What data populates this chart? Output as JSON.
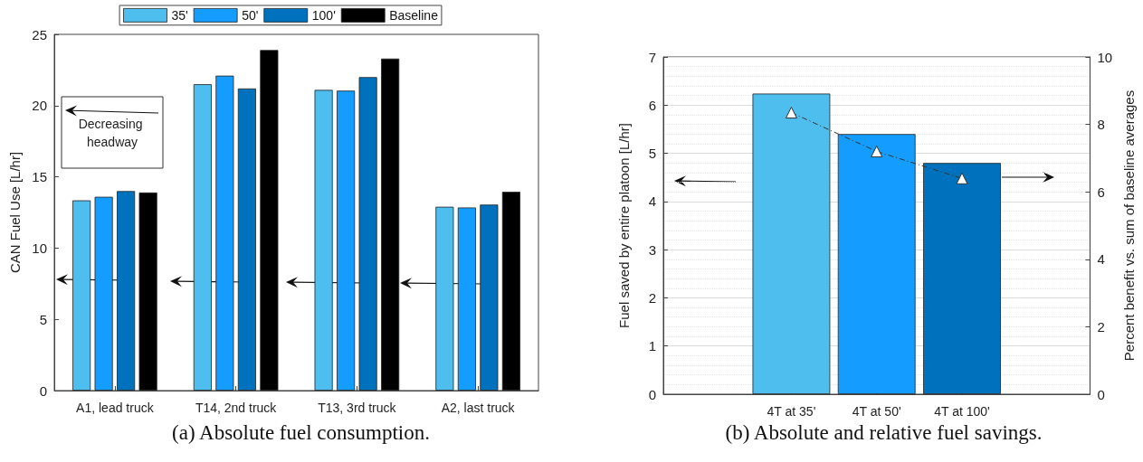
{
  "chart_data": [
    {
      "type": "bar",
      "title": "(a) Absolute fuel consumption.",
      "ylabel": "CAN Fuel Use [L/hr]",
      "categories": [
        "A1, lead truck",
        "T14, 2nd truck",
        "T13, 3rd truck",
        "A2, last truck"
      ],
      "series": [
        {
          "name": "35'",
          "color": "#4dbeee",
          "values": [
            13.35,
            21.5,
            21.1,
            12.9
          ]
        },
        {
          "name": "50'",
          "color": "#149dff",
          "values": [
            13.6,
            22.1,
            21.05,
            12.85
          ]
        },
        {
          "name": "100'",
          "color": "#0072bd",
          "values": [
            14.0,
            21.2,
            22.0,
            13.05
          ]
        },
        {
          "name": "Baseline",
          "color": "#000000",
          "values": [
            13.9,
            23.9,
            23.3,
            13.95
          ]
        }
      ],
      "ylim": [
        0,
        25
      ],
      "yticks": [
        0,
        5,
        10,
        15,
        20,
        25
      ],
      "legend": "top",
      "annotations": [
        "Decreasing headway"
      ]
    },
    {
      "type": "bar",
      "title": "(b) Absolute and relative fuel savings.",
      "ylabel": "Fuel saved by entire platoon [L/hr]",
      "y2label": "Percent benefit vs. sum of baseline averages",
      "categories": [
        null,
        "4T at 35'",
        "4T at 50'",
        "4T at 100'",
        null
      ],
      "series": [
        {
          "colors": [
            "#4dbeee",
            "#4dbeee",
            "#149dff",
            "#0072bd",
            "#0072bd"
          ],
          "values": [
            null,
            6.24,
            5.4,
            4.8,
            null
          ]
        },
        {
          "type": "line",
          "axis": "y2",
          "color": "#333333",
          "marker": "triangle",
          "line_style": "dashed",
          "values": [
            null,
            8.35,
            7.2,
            6.4,
            null
          ]
        }
      ],
      "ylim": [
        0,
        7
      ],
      "yticks": [
        0,
        1,
        2,
        3,
        4,
        5,
        6,
        7
      ],
      "y2lim": [
        0,
        10
      ],
      "y2ticks": [
        0,
        2,
        4,
        6,
        8,
        10
      ],
      "grid": "y"
    }
  ]
}
